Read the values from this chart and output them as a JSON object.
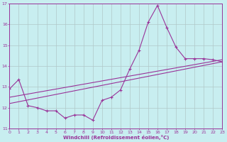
{
  "xlabel": "Windchill (Refroidissement éolien,°C)",
  "bg_color": "#c8eef0",
  "line_color": "#993399",
  "grid_color": "#b0c8c8",
  "xlim": [
    0,
    23
  ],
  "ylim": [
    11,
    17
  ],
  "xticks": [
    0,
    1,
    2,
    3,
    4,
    5,
    6,
    7,
    8,
    9,
    10,
    11,
    12,
    13,
    14,
    15,
    16,
    17,
    18,
    19,
    20,
    21,
    22,
    23
  ],
  "yticks": [
    11,
    12,
    13,
    14,
    15,
    16,
    17
  ],
  "line_zigzag_x": [
    0,
    1,
    2,
    3,
    4,
    5,
    6,
    7,
    8,
    9,
    10,
    11,
    12,
    13,
    14,
    15,
    16,
    17,
    18,
    19,
    20,
    21,
    22,
    23
  ],
  "line_zigzag_y": [
    12.9,
    13.35,
    12.1,
    12.0,
    11.85,
    11.85,
    11.5,
    11.65,
    11.65,
    11.4,
    12.35,
    12.5,
    12.85,
    13.85,
    14.75,
    16.1,
    16.9,
    15.85,
    14.9,
    14.35,
    14.35,
    14.35,
    14.3,
    14.2
  ],
  "line_trend1_x": [
    0,
    23
  ],
  "line_trend1_y": [
    12.5,
    14.3
  ],
  "line_trend2_x": [
    0,
    23
  ],
  "line_trend2_y": [
    12.2,
    14.2
  ]
}
